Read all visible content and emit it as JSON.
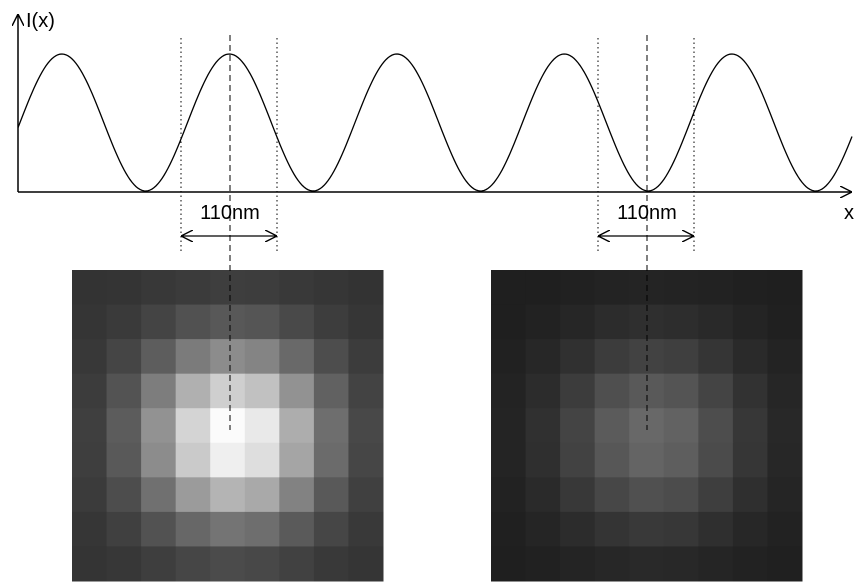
{
  "axis": {
    "y_label": "I(x)",
    "x_label": "x"
  },
  "annotations": [
    {
      "label": "110nm"
    },
    {
      "label": "110nm"
    }
  ]
}
